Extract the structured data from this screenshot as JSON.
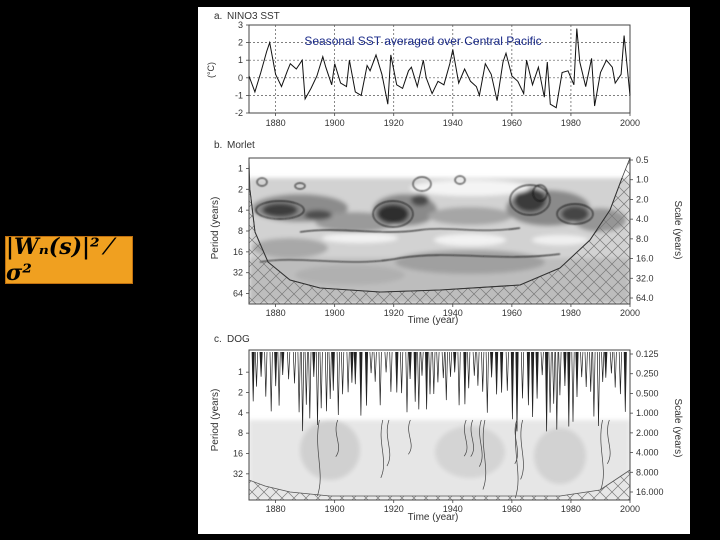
{
  "formula": {
    "text": "|Wₙ(s)|² ⁄ σ²"
  },
  "overlay_caption": "Seasonal SST averaged over Central Pacific",
  "chart_data": [
    {
      "type": "line",
      "panel_label": "a.",
      "title": "NINO3 SST",
      "xlabel": "",
      "ylabel": "(°C)",
      "xlim": [
        1871,
        2000
      ],
      "ylim": [
        -2,
        3
      ],
      "x_ticks": [
        1880,
        1900,
        1920,
        1940,
        1960,
        1980,
        2000
      ],
      "y_ticks": [
        3,
        2,
        1,
        0,
        -1,
        -2
      ],
      "dashed_vlines": [
        1880,
        1900,
        1920,
        1940,
        1960,
        1980
      ],
      "dashed_hlines": [
        2,
        1,
        0,
        -1
      ],
      "series": [
        {
          "x": [
            1871,
            1873,
            1875,
            1877,
            1878,
            1880,
            1882,
            1884,
            1885,
            1887,
            1889,
            1890,
            1892,
            1894,
            1896,
            1897,
            1899,
            1900,
            1902,
            1904,
            1905,
            1907,
            1909,
            1911,
            1912,
            1914,
            1916,
            1918,
            1919,
            1921,
            1923,
            1925,
            1926,
            1928,
            1930,
            1931,
            1933,
            1935,
            1937,
            1939,
            1940,
            1942,
            1944,
            1946,
            1948,
            1949,
            1951,
            1953,
            1955,
            1957,
            1958,
            1960,
            1962,
            1964,
            1965,
            1967,
            1969,
            1971,
            1972,
            1973,
            1975,
            1977,
            1979,
            1981,
            1982,
            1983,
            1985,
            1987,
            1988,
            1990,
            1992,
            1994,
            1995,
            1997,
            1998,
            2000
          ],
          "values": [
            0.1,
            -0.8,
            0.3,
            1.5,
            2.0,
            0.2,
            -0.5,
            0.4,
            0.8,
            0.5,
            1.0,
            -1.2,
            -0.6,
            0.1,
            1.2,
            0.6,
            -0.4,
            0.8,
            -0.3,
            -0.5,
            1.0,
            -0.8,
            -1.0,
            0.7,
            0.4,
            1.3,
            0.2,
            -1.5,
            1.3,
            -0.4,
            -0.6,
            0.4,
            0.6,
            -0.5,
            1.0,
            0.0,
            -0.9,
            -0.2,
            -0.4,
            0.8,
            1.6,
            -0.3,
            0.5,
            -0.2,
            -0.5,
            -1.0,
            0.8,
            0.2,
            -1.3,
            0.9,
            1.4,
            0.1,
            -0.2,
            -0.9,
            1.0,
            -0.4,
            0.6,
            -1.1,
            0.9,
            -1.5,
            -1.7,
            0.3,
            0.4,
            -0.4,
            2.8,
            0.9,
            -0.5,
            1.1,
            -1.6,
            0.3,
            1.0,
            0.6,
            -0.3,
            0.2,
            2.4,
            -1.0
          ]
        }
      ]
    },
    {
      "type": "heatmap",
      "panel_label": "b.",
      "title": "Morlet",
      "xlabel": "Time (year)",
      "ylabel": "Period (years)",
      "ylabel_right": "Scale (years)",
      "xlim": [
        1871,
        2000
      ],
      "x_ticks": [
        1880,
        1900,
        1920,
        1940,
        1960,
        1980,
        2000
      ],
      "y_ticks_left": [
        "1",
        "2",
        "4",
        "8",
        "16",
        "32",
        "64"
      ],
      "y_ticks_right": [
        "0.5",
        "1.0",
        "2.0",
        "4.0",
        "8.0",
        "16.0",
        "32.0",
        "64.0"
      ],
      "note": "wavelet power spectrum"
    },
    {
      "type": "heatmap",
      "panel_label": "c.",
      "title": "DOG",
      "xlabel": "Time (year)",
      "ylabel": "Period (years)",
      "ylabel_right": "Scale (years)",
      "xlim": [
        1871,
        2000
      ],
      "x_ticks": [
        1880,
        1900,
        1920,
        1940,
        1960,
        1980,
        2000
      ],
      "y_ticks_left": [
        "1",
        "2",
        "4",
        "8",
        "16",
        "32"
      ],
      "y_ticks_right": [
        "0.125",
        "0.250",
        "0.500",
        "1.000",
        "2.000",
        "4.000",
        "8.000",
        "16.000"
      ]
    }
  ]
}
